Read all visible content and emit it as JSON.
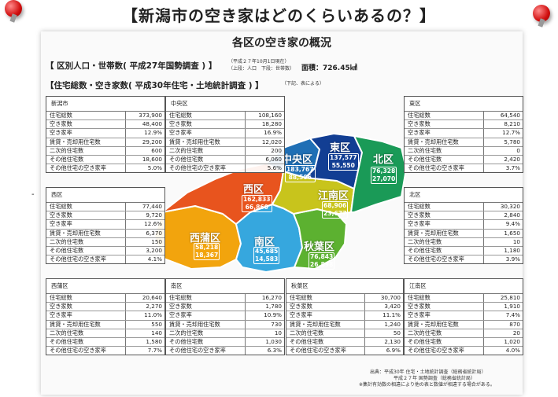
{
  "title": "【新潟市の空き家はどのくらいあるの？】",
  "panel_title": "各区の空き家の概況",
  "section1": {
    "heading": "【 区別人口・世帯数( 平成27年国勢調査 ) 】",
    "note_line1": "（平成２７年10月1日現在）",
    "note_line2": "（上段：人口　下段：世帯数）",
    "area": "面積：726.45㎢"
  },
  "section2": {
    "heading": "【住宅総数・空き家数( 平成30年住宅・土地統計調査 ) 】",
    "note": "（下記、表による）"
  },
  "row_labels": [
    "住宅総数",
    "空き家数",
    "空き家率",
    "賃貸・売却用住宅数",
    "二次的住宅数",
    "その他住宅数",
    "その他住宅の空き家率"
  ],
  "tables": [
    {
      "name": "新潟市",
      "values": [
        "373,900",
        "48,400",
        "12.9%",
        "29,200",
        "600",
        "18,600",
        "5.0%"
      ]
    },
    {
      "name": "中央区",
      "values": [
        "108,160",
        "18,280",
        "16.9%",
        "12,020",
        "200",
        "6,060",
        "5.6%"
      ]
    },
    {
      "name": "東区",
      "values": [
        "64,540",
        "8,210",
        "12.7%",
        "5,780",
        "0",
        "2,420",
        "3.7%"
      ]
    },
    {
      "name": "西区",
      "values": [
        "77,440",
        "9,720",
        "12.6%",
        "6,370",
        "150",
        "3,200",
        "4.1%"
      ]
    },
    {
      "name": "北区",
      "values": [
        "30,320",
        "2,840",
        "9.4%",
        "1,650",
        "10",
        "1,180",
        "3.9%"
      ]
    },
    {
      "name": "西蒲区",
      "values": [
        "20,640",
        "2,270",
        "11.0%",
        "550",
        "140",
        "1,580",
        "7.7%"
      ]
    },
    {
      "name": "南区",
      "values": [
        "16,270",
        "1,780",
        "10.9%",
        "730",
        "10",
        "1,030",
        "6.3%"
      ]
    },
    {
      "name": "秋葉区",
      "values": [
        "30,700",
        "3,420",
        "11.1%",
        "1,240",
        "50",
        "2,130",
        "6.9%"
      ]
    },
    {
      "name": "江南区",
      "values": [
        "25,810",
        "1,910",
        "7.4%",
        "870",
        "20",
        "1,020",
        "4.0%"
      ]
    }
  ],
  "map_wards": [
    {
      "name": "中央区",
      "population": "183,767",
      "households": "88,506",
      "color": "#1f6fb5"
    },
    {
      "name": "東区",
      "population": "137,577",
      "households": "55,550",
      "color": "#123e93"
    },
    {
      "name": "北区",
      "population": "76,328",
      "households": "27,070",
      "color": "#1a9a57"
    },
    {
      "name": "西区",
      "population": "162,833",
      "households": "66,860",
      "color": "#e8541e"
    },
    {
      "name": "江南区",
      "population": "68,906",
      "households": "23,677",
      "color": "#c8c41c"
    },
    {
      "name": "西蒲区",
      "population": "58,218",
      "households": "18,367",
      "color": "#f2a40d"
    },
    {
      "name": "南区",
      "population": "45,685",
      "households": "14,583",
      "color": "#36a7de"
    },
    {
      "name": "秋葉区",
      "population": "76,843",
      "households": "26,898",
      "color": "#5cb130"
    }
  ],
  "source": [
    "出典：平成30年 住宅・土地統計調査（総務省統計局）",
    "平成２７年 国勢調査（総務省統計局）",
    "※集計有効数の相違により他の表と数値が相違する場合がある。"
  ],
  "dash": "-"
}
